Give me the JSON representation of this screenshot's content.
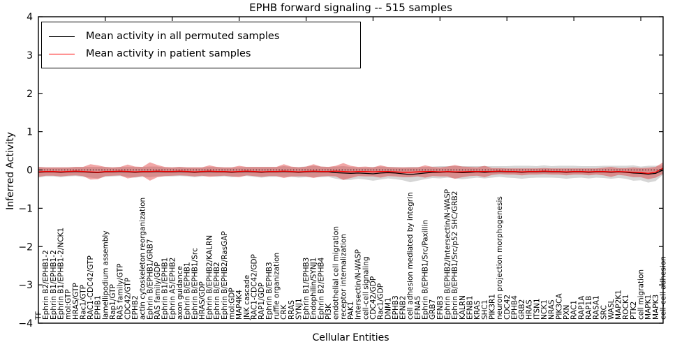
{
  "legend": {
    "items": [
      {
        "label": "Mean activity in all permuted samples",
        "color": "#000000"
      },
      {
        "label": "Mean activity in patient samples",
        "color": "#ff0000"
      }
    ]
  },
  "chart_data": {
    "type": "line",
    "title": "EPHB forward signaling -- 515 samples",
    "xlabel": "Cellular Entities",
    "ylabel": "Inferred Activity",
    "ylim": [
      -4,
      4
    ],
    "yticks": [
      -4,
      -3,
      -2,
      -1,
      0,
      1,
      2,
      3,
      4
    ],
    "grid": false,
    "zero_line": "dotted",
    "legend_position": "upper-left",
    "categories": [
      "TF",
      "Ephrin B2/EPHB1-2",
      "Ephrin B1/EPHB1-2",
      "Ephrin B1/EPHB1-2/NCK1",
      "mol:GTP",
      "HRAS/GTP",
      "Rac1/GTP",
      "RAC1-CDC42/GTP",
      "EPHB1",
      "lamellipodium assembly",
      "Rap1/GTP",
      "RAS family/GTP",
      "CDC42/GTP",
      "EPHB2",
      "actin cytoskeleton reorganization",
      "Ephrin B/EPHB1/GRB7",
      "RAS family/GDP",
      "Ephrin B1/EPHB1",
      "Ephrin A5/EPHB2",
      "axon guidance",
      "Ephrin B/EPHB1",
      "Ephrin B/EPHB1/Src",
      "HRAS/GDP",
      "Ephrin B/EPHB2/KALRN",
      "Ephrin B/EPHB2",
      "Ephrin B/EPHB2/RasGAP",
      "mol:GDP",
      "MAP4K4",
      "JNK cascade",
      "RAC1-CDC42/GDP",
      "RAP1/GDP",
      "Ephrin B/EPHB3",
      "ruffle organization",
      "CRK",
      "RRAS",
      "SYNJ1",
      "Ephrin B1/EPHB3",
      "Endophilin/SYNJ1",
      "Ephrin B2/EPHB4",
      "PI3K",
      "endothelial cell migration",
      "receptor internalization",
      "PAK1",
      "Intersectin/N-WASP",
      "cell-cell signaling",
      "CDC42/GDP",
      "Rac1/GDP",
      "DNM1",
      "EPHB3",
      "EFNB2",
      "cell adhesion mediated by integrin",
      "EFNA5",
      "Ephrin B/EPHB1/Src/Paxillin",
      "GRB7",
      "EFNB3",
      "Ephrin B/EPHB2/Intersectin/N-WASP",
      "Ephrin B/EPHB1/Src/p52 SHC/GRB2",
      "KALRN",
      "EFNB1",
      "KRAS",
      "SHC1",
      "PIK3R1",
      "neuron projection morphogenesis",
      "CDC42",
      "EPHB4",
      "GRB2",
      "HRAS",
      "ITSN1",
      "NCK1",
      "NRAS",
      "PIK3CA",
      "PXN",
      "RAC1",
      "RAP1A",
      "RAP1B",
      "RASA1",
      "SRC",
      "WASL",
      "MAP2K1",
      "ROCK1",
      "PTK2",
      "cell migration",
      "MAPK1",
      "MAPK3",
      "cell-cell adhesion"
    ],
    "series": [
      {
        "name": "Mean activity in all permuted samples",
        "color": "#000000",
        "band_color": "#777777",
        "band_opacity": 0.3,
        "values": [
          -0.06,
          -0.05,
          -0.05,
          -0.06,
          -0.05,
          -0.04,
          -0.05,
          -0.06,
          -0.07,
          -0.05,
          -0.05,
          -0.04,
          -0.05,
          -0.06,
          -0.05,
          -0.05,
          -0.04,
          -0.05,
          -0.05,
          -0.04,
          -0.05,
          -0.06,
          -0.05,
          -0.04,
          -0.05,
          -0.05,
          -0.06,
          -0.05,
          -0.04,
          -0.05,
          -0.06,
          -0.05,
          -0.05,
          -0.04,
          -0.05,
          -0.06,
          -0.05,
          -0.04,
          -0.05,
          -0.05,
          -0.07,
          -0.08,
          -0.09,
          -0.08,
          -0.09,
          -0.1,
          -0.08,
          -0.07,
          -0.08,
          -0.1,
          -0.12,
          -0.1,
          -0.08,
          -0.06,
          -0.06,
          -0.05,
          -0.06,
          -0.07,
          -0.06,
          -0.05,
          -0.06,
          -0.05,
          -0.04,
          -0.05,
          -0.05,
          -0.06,
          -0.05,
          -0.05,
          -0.04,
          -0.05,
          -0.05,
          -0.06,
          -0.05,
          -0.05,
          -0.06,
          -0.05,
          -0.05,
          -0.06,
          -0.05,
          -0.06,
          -0.08,
          -0.09,
          -0.11,
          -0.09,
          0.0
        ],
        "std": [
          0.14,
          0.12,
          0.12,
          0.13,
          0.12,
          0.12,
          0.13,
          0.14,
          0.15,
          0.13,
          0.12,
          0.12,
          0.13,
          0.14,
          0.13,
          0.14,
          0.13,
          0.12,
          0.12,
          0.12,
          0.12,
          0.13,
          0.12,
          0.12,
          0.13,
          0.12,
          0.13,
          0.12,
          0.12,
          0.13,
          0.14,
          0.13,
          0.13,
          0.14,
          0.13,
          0.14,
          0.14,
          0.15,
          0.14,
          0.13,
          0.16,
          0.18,
          0.17,
          0.15,
          0.16,
          0.18,
          0.17,
          0.15,
          0.16,
          0.17,
          0.2,
          0.18,
          0.16,
          0.15,
          0.16,
          0.15,
          0.16,
          0.17,
          0.16,
          0.15,
          0.16,
          0.15,
          0.14,
          0.15,
          0.16,
          0.17,
          0.16,
          0.15,
          0.16,
          0.15,
          0.16,
          0.17,
          0.16,
          0.15,
          0.16,
          0.15,
          0.16,
          0.17,
          0.16,
          0.17,
          0.2,
          0.18,
          0.22,
          0.2,
          0.12
        ]
      },
      {
        "name": "Mean activity in patient samples",
        "color": "#ff0000",
        "band_color": "#dd2020",
        "band_opacity": 0.4,
        "values": [
          -0.05,
          -0.04,
          -0.04,
          -0.05,
          -0.04,
          -0.03,
          -0.04,
          -0.05,
          -0.06,
          -0.04,
          -0.04,
          -0.03,
          -0.04,
          -0.05,
          -0.04,
          -0.04,
          -0.03,
          -0.04,
          -0.04,
          -0.03,
          -0.04,
          -0.05,
          -0.04,
          -0.03,
          -0.04,
          -0.04,
          -0.05,
          -0.04,
          -0.03,
          -0.04,
          -0.05,
          -0.04,
          -0.04,
          -0.03,
          -0.04,
          -0.05,
          -0.04,
          -0.03,
          -0.04,
          -0.04,
          -0.03,
          -0.04,
          -0.05,
          -0.04,
          -0.04,
          -0.05,
          -0.04,
          -0.04,
          -0.05,
          -0.06,
          -0.06,
          -0.05,
          -0.04,
          -0.04,
          -0.05,
          -0.04,
          -0.05,
          -0.05,
          -0.04,
          -0.04,
          -0.04,
          -0.04,
          -0.03,
          -0.04,
          -0.04,
          -0.05,
          -0.04,
          -0.04,
          -0.03,
          -0.04,
          -0.04,
          -0.05,
          -0.04,
          -0.04,
          -0.05,
          -0.04,
          -0.04,
          -0.05,
          -0.04,
          -0.05,
          -0.06,
          -0.07,
          -0.09,
          -0.06,
          0.05
        ],
        "std": [
          0.13,
          0.11,
          0.11,
          0.12,
          0.11,
          0.11,
          0.12,
          0.2,
          0.18,
          0.12,
          0.11,
          0.11,
          0.18,
          0.14,
          0.12,
          0.24,
          0.16,
          0.12,
          0.11,
          0.11,
          0.11,
          0.12,
          0.11,
          0.15,
          0.12,
          0.11,
          0.12,
          0.15,
          0.11,
          0.12,
          0.13,
          0.12,
          0.12,
          0.18,
          0.13,
          0.12,
          0.13,
          0.18,
          0.13,
          0.12,
          0.14,
          0.22,
          0.16,
          0.12,
          0.13,
          0.12,
          0.16,
          0.12,
          0.12,
          0.13,
          0.13,
          0.12,
          0.16,
          0.12,
          0.12,
          0.13,
          0.18,
          0.14,
          0.12,
          0.11,
          0.15,
          0.09,
          0.08,
          0.08,
          0.08,
          0.09,
          0.08,
          0.08,
          0.08,
          0.08,
          0.08,
          0.09,
          0.08,
          0.08,
          0.09,
          0.08,
          0.1,
          0.13,
          0.09,
          0.1,
          0.13,
          0.12,
          0.15,
          0.14,
          0.15
        ]
      }
    ]
  }
}
